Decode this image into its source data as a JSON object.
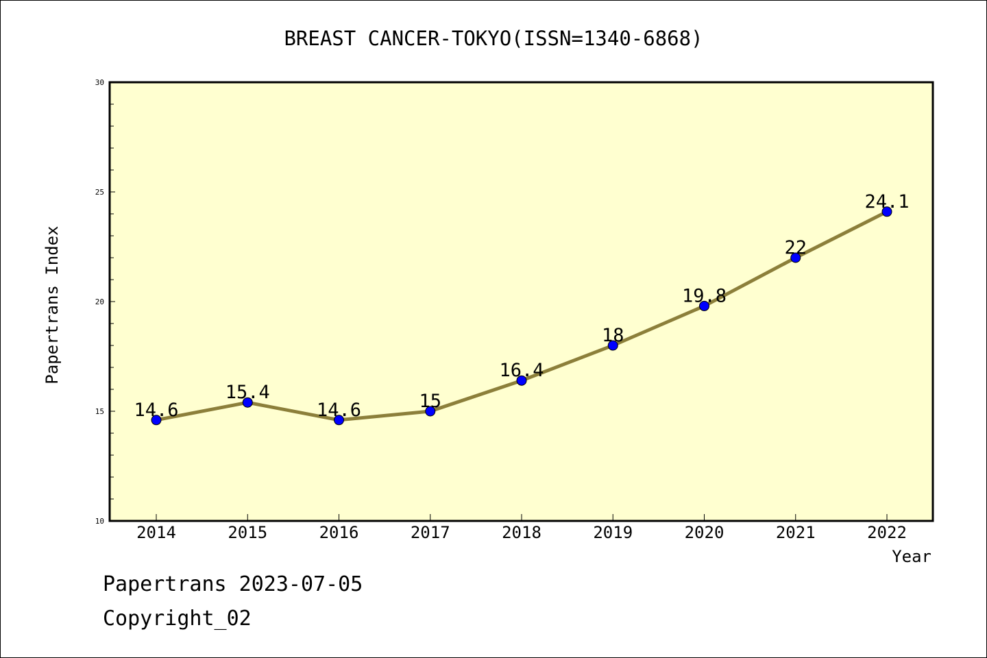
{
  "chart_data": {
    "type": "line",
    "title": "BREAST CANCER-TOKYO(ISSN=1340-6868)",
    "xlabel": "Year",
    "ylabel": "Papertrans Index",
    "categories": [
      "2014",
      "2015",
      "2016",
      "2017",
      "2018",
      "2019",
      "2020",
      "2021",
      "2022"
    ],
    "series": [
      {
        "values": [
          14.6,
          15.4,
          14.6,
          15,
          16.4,
          18,
          19.8,
          22,
          24.1
        ],
        "labels": [
          "14.6",
          "15.4",
          "14.6",
          "15",
          "16.4",
          "18",
          "19.8",
          "22",
          "24.1"
        ]
      }
    ],
    "ylim": [
      10,
      30
    ],
    "yticks": [
      "10",
      "15",
      "20",
      "25",
      "30"
    ],
    "colors": {
      "plot_bg": "#ffffd0",
      "line": "#8c7f3a",
      "marker": "#0000ff"
    },
    "grid": false
  },
  "footer": {
    "line1": "Papertrans 2023-07-05",
    "line2": "Copyright_02"
  }
}
